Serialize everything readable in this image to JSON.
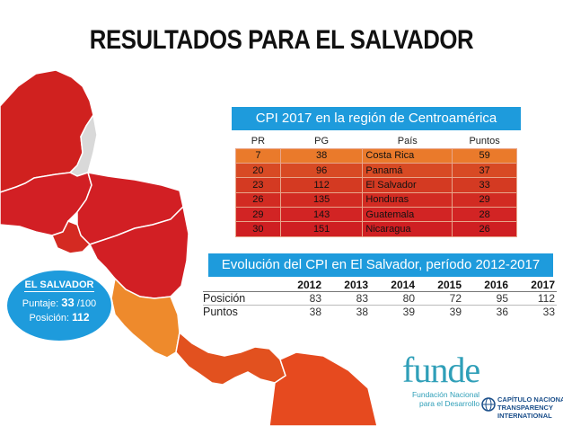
{
  "title": "RESULTADOS PARA EL SALVADOR",
  "regional_table": {
    "heading": "CPI 2017 en la región de Centroamérica",
    "columns": [
      "PR",
      "PG",
      "País",
      "Puntos"
    ],
    "rows": [
      {
        "pr": "7",
        "pg": "38",
        "country": "Costa Rica",
        "points": "59"
      },
      {
        "pr": "20",
        "pg": "96",
        "country": "Panamá",
        "points": "37"
      },
      {
        "pr": "23",
        "pg": "112",
        "country": "El Salvador",
        "points": "33"
      },
      {
        "pr": "26",
        "pg": "135",
        "country": "Honduras",
        "points": "29"
      },
      {
        "pr": "29",
        "pg": "143",
        "country": "Guatemala",
        "points": "28"
      },
      {
        "pr": "30",
        "pg": "151",
        "country": "Nicaragua",
        "points": "26"
      }
    ]
  },
  "evolution_table": {
    "heading": "Evolución del CPI en El Salvador, período 2012-2017",
    "years": [
      "2012",
      "2013",
      "2014",
      "2015",
      "2016",
      "2017"
    ],
    "position_label": "Posición",
    "points_label": "Puntos",
    "positions": [
      "83",
      "83",
      "80",
      "72",
      "95",
      "112"
    ],
    "points": [
      "38",
      "38",
      "39",
      "39",
      "36",
      "33"
    ]
  },
  "el_salvador_badge": {
    "name": "EL SALVADOR",
    "score_label": "Puntaje:",
    "score_value": "33",
    "score_max": "/100",
    "position_label": "Posición:",
    "position_value": "112"
  },
  "logos": {
    "funde_word": "funde",
    "funde_sub_1": "Fundación Nacional",
    "funde_sub_2": "para el Desarrollo",
    "ti_line_1": "CAPÍTULO NACIONAL",
    "ti_line_2": "TRANSPARENCY",
    "ti_line_3": "INTERNATIONAL"
  },
  "colors": {
    "accent_blue": "#1e9bdc",
    "map_red": "#d21f24",
    "map_orange": "#ee8a2c",
    "map_dark_orange": "#e2511f",
    "map_grey": "#d9d9d9"
  }
}
